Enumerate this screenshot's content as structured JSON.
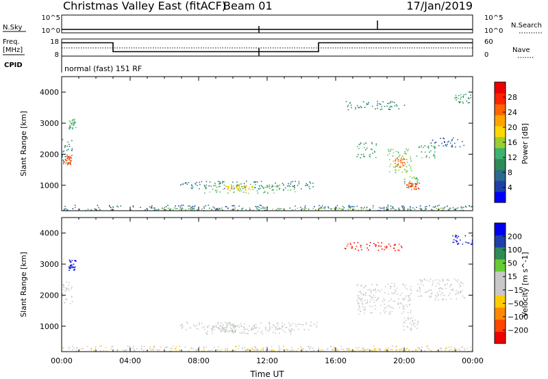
{
  "header": {
    "title": "Christmas Valley East (fitACF)",
    "beam": "Beam 01",
    "date": "17/Jan/2019"
  },
  "top_panels": {
    "nsky_label": "N.Sky",
    "nsearch_label": "N.Search",
    "nsky_ticks": [
      "10^5",
      "10^0"
    ],
    "nsearch_ticks": [
      "10^5",
      "10^0"
    ],
    "freq_label_1": "Freq.",
    "freq_label_2": "[MHz]",
    "freq_ticks": [
      "18",
      "8"
    ],
    "nave_label": "Nave",
    "nave_ticks": [
      "60",
      "0"
    ],
    "cpid_label": "CPID",
    "cpid_text": "normal (fast) 151 RF",
    "freq_steps": [
      {
        "t0": 0,
        "t1": 3,
        "mhz": 15.8
      },
      {
        "t0": 3,
        "t1": 15,
        "mhz": 10.6
      },
      {
        "t0": 15,
        "t1": 24,
        "mhz": 15.8
      }
    ]
  },
  "chart_data": [
    {
      "type": "heatmap",
      "name": "power",
      "ylabel": "Slant Range [km]",
      "x_unit": "Time UT (hours)",
      "xlim": [
        0,
        24
      ],
      "ylim": [
        180,
        4500
      ],
      "yticks": [
        1000,
        2000,
        3000,
        4000
      ],
      "colorbar": {
        "label": "Power [dB]",
        "ticks": [
          "28",
          "24",
          "20",
          "16",
          "12",
          "8",
          "4"
        ],
        "range": [
          0,
          30
        ],
        "colors": [
          "#0000ff",
          "#1f3fa8",
          "#2a6b8c",
          "#2e8b57",
          "#3cb371",
          "#9acd32",
          "#ffd700",
          "#ffa500",
          "#ff6600",
          "#ff2200",
          "#ee0000"
        ]
      },
      "regions": [
        {
          "t0": 0.0,
          "t1": 24.0,
          "r0": 200,
          "r1": 380,
          "val": 7
        },
        {
          "t0": 5.5,
          "t1": 23.8,
          "r0": 200,
          "r1": 300,
          "val": 14
        },
        {
          "t0": 6.9,
          "t1": 14.9,
          "r0": 900,
          "r1": 1150,
          "val": 8
        },
        {
          "t0": 8.3,
          "t1": 13.6,
          "r0": 760,
          "r1": 1050,
          "val": 13
        },
        {
          "t0": 9.5,
          "t1": 11.2,
          "r0": 880,
          "r1": 1000,
          "val": 19
        },
        {
          "t0": 0.0,
          "t1": 0.6,
          "r0": 1700,
          "r1": 2500,
          "val": 8
        },
        {
          "t0": 0.05,
          "t1": 0.55,
          "r0": 1680,
          "r1": 1950,
          "val": 24
        },
        {
          "t0": 0.4,
          "t1": 0.8,
          "r0": 2800,
          "r1": 3150,
          "val": 12
        },
        {
          "t0": 16.5,
          "t1": 20.0,
          "r0": 3450,
          "r1": 3720,
          "val": 9
        },
        {
          "t0": 17.2,
          "t1": 18.4,
          "r0": 1900,
          "r1": 2400,
          "val": 10
        },
        {
          "t0": 19.0,
          "t1": 20.4,
          "r0": 1400,
          "r1": 2200,
          "val": 14
        },
        {
          "t0": 19.4,
          "t1": 20.0,
          "r0": 1600,
          "r1": 1900,
          "val": 23
        },
        {
          "t0": 19.9,
          "t1": 20.8,
          "r0": 850,
          "r1": 1300,
          "val": 13
        },
        {
          "t0": 20.1,
          "t1": 20.9,
          "r0": 880,
          "r1": 1100,
          "val": 25
        },
        {
          "t0": 20.7,
          "t1": 21.8,
          "r0": 1850,
          "r1": 2300,
          "val": 12
        },
        {
          "t0": 21.5,
          "t1": 23.5,
          "r0": 2250,
          "r1": 2550,
          "val": 6
        },
        {
          "t0": 22.8,
          "t1": 24.0,
          "r0": 3650,
          "r1": 3950,
          "val": 10
        }
      ]
    },
    {
      "type": "heatmap",
      "name": "velocity",
      "ylabel": "Slant Range [km]",
      "x_unit": "Time UT (hours)",
      "xlim": [
        0,
        24
      ],
      "ylim": [
        180,
        4500
      ],
      "yticks": [
        1000,
        2000,
        3000,
        4000
      ],
      "xticks": [
        "00:00",
        "04:00",
        "08:00",
        "12:00",
        "16:00",
        "20:00",
        "00:00"
      ],
      "xlabel": "Time UT",
      "colorbar": {
        "label": "Velocity [m s^-1]",
        "ticks": [
          "200",
          "100",
          "50",
          "15",
          "−15",
          "−50",
          "−100",
          "−200"
        ],
        "range": [
          -250,
          250
        ],
        "colors": [
          "#ee0000",
          "#ff4400",
          "#ff8800",
          "#ffcc00",
          "#c8c8c8",
          "#c8c8c8",
          "#66cc33",
          "#2e8b57",
          "#1f3fa8",
          "#0000ee"
        ]
      },
      "regions": [
        {
          "t0": 0.0,
          "t1": 24.0,
          "r0": 200,
          "r1": 380,
          "val": -30
        },
        {
          "t0": 5.5,
          "t1": 23.8,
          "r0": 200,
          "r1": 300,
          "val": -60
        },
        {
          "t0": 6.9,
          "t1": 14.9,
          "r0": 900,
          "r1": 1150,
          "val": 0
        },
        {
          "t0": 8.3,
          "t1": 13.6,
          "r0": 760,
          "r1": 1050,
          "val": 0
        },
        {
          "t0": 9.1,
          "t1": 10.2,
          "r0": 820,
          "r1": 1150,
          "val": 30
        },
        {
          "t0": 0.0,
          "t1": 0.6,
          "r0": 1700,
          "r1": 2500,
          "val": 0
        },
        {
          "t0": 0.4,
          "t1": 0.8,
          "r0": 2800,
          "r1": 3150,
          "val": 220
        },
        {
          "t0": 16.5,
          "t1": 20.0,
          "r0": 3450,
          "r1": 3720,
          "val": -220
        },
        {
          "t0": 17.2,
          "t1": 20.4,
          "r0": 1400,
          "r1": 2400,
          "val": 0
        },
        {
          "t0": 19.9,
          "t1": 20.8,
          "r0": 850,
          "r1": 1300,
          "val": 0
        },
        {
          "t0": 20.7,
          "t1": 23.5,
          "r0": 1850,
          "r1": 2550,
          "val": 0
        },
        {
          "t0": 22.8,
          "t1": 24.0,
          "r0": 3650,
          "r1": 3950,
          "val": 220
        }
      ]
    }
  ]
}
